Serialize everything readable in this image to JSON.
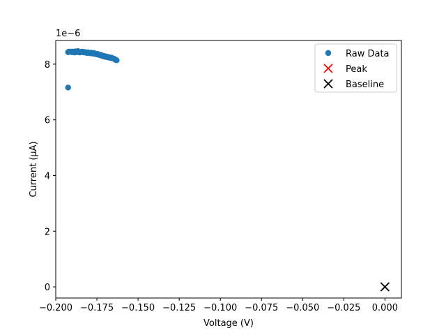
{
  "chart_data": {
    "type": "scatter",
    "xlabel": "Voltage (V)",
    "ylabel": "Current (μA)",
    "y_offset_label": "1e−6",
    "xlim": [
      -0.2,
      0.01
    ],
    "ylim": [
      -0.4,
      8.85
    ],
    "xticks": [
      -0.2,
      -0.175,
      -0.15,
      -0.125,
      -0.1,
      -0.075,
      -0.05,
      -0.025,
      0.0
    ],
    "xtick_labels": [
      "−0.200",
      "−0.175",
      "−0.150",
      "−0.125",
      "−0.100",
      "−0.075",
      "−0.050",
      "−0.025",
      "0.000"
    ],
    "yticks": [
      0,
      2,
      4,
      6,
      8
    ],
    "ytick_labels": [
      "0",
      "2",
      "4",
      "6",
      "8"
    ],
    "grid": false,
    "legend_position": "top-right",
    "series": [
      {
        "name": "Raw Data",
        "marker": "circle",
        "color": "#1f77b4",
        "x": [
          -0.1925,
          -0.192,
          -0.191,
          -0.1905,
          -0.19,
          -0.1895,
          -0.189,
          -0.1885,
          -0.188,
          -0.1875,
          -0.187,
          -0.1865,
          -0.186,
          -0.1855,
          -0.185,
          -0.1845,
          -0.184,
          -0.1835,
          -0.183,
          -0.1825,
          -0.182,
          -0.1815,
          -0.181,
          -0.1805,
          -0.18,
          -0.1795,
          -0.179,
          -0.1785,
          -0.178,
          -0.1775,
          -0.177,
          -0.1765,
          -0.176,
          -0.1755,
          -0.175,
          -0.1745,
          -0.174,
          -0.1735,
          -0.173,
          -0.1725,
          -0.172,
          -0.1715,
          -0.171,
          -0.1705,
          -0.17,
          -0.1695,
          -0.169,
          -0.1685,
          -0.168,
          -0.1675,
          -0.167,
          -0.1665,
          -0.166,
          -0.1655,
          -0.165,
          -0.1645,
          -0.164,
          -0.1635,
          -0.163,
          -0.1925
        ],
        "y": [
          8.43,
          8.45,
          8.44,
          8.45,
          8.43,
          8.45,
          8.44,
          8.42,
          8.46,
          8.43,
          8.44,
          8.47,
          8.44,
          8.42,
          8.43,
          8.44,
          8.45,
          8.43,
          8.44,
          8.42,
          8.43,
          8.41,
          8.4,
          8.42,
          8.41,
          8.4,
          8.39,
          8.41,
          8.4,
          8.38,
          8.4,
          8.37,
          8.38,
          8.36,
          8.35,
          8.37,
          8.34,
          8.33,
          8.32,
          8.33,
          8.3,
          8.29,
          8.3,
          8.27,
          8.28,
          8.26,
          8.27,
          8.25,
          8.24,
          8.25,
          8.23,
          8.22,
          8.23,
          8.21,
          8.2,
          8.19,
          8.17,
          8.15,
          8.14,
          7.16
        ]
      },
      {
        "name": "Peak",
        "marker": "x",
        "color": "#ff0000",
        "x": [
          0.0
        ],
        "y": [
          0.0
        ]
      },
      {
        "name": "Baseline",
        "marker": "x",
        "color": "#000000",
        "x": [
          0.0
        ],
        "y": [
          0.0
        ]
      }
    ]
  }
}
